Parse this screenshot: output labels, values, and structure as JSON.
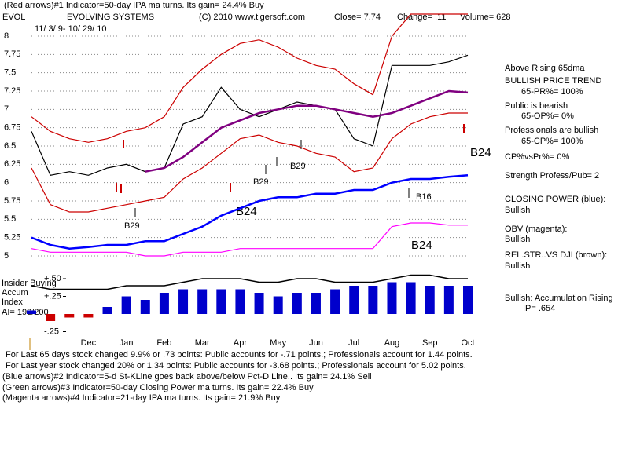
{
  "header": {
    "line1": "(Red arrows)#1 Indicator=50-day IPA ma turns. Its gain= 24.4% Buy",
    "symbol": "EVOL",
    "company": "EVOLVING SYSTEMS",
    "copyright": "(C) 2010 www.tigersoft.com",
    "close": "Close=  7.74",
    "change": "Change=  .11",
    "volume": "Volume= 628",
    "dates": "11/ 3/ 9- 10/ 29/ 10"
  },
  "chart_data": [
    {
      "type": "line",
      "categories": [
        null,
        null,
        null,
        "Dec",
        null,
        "Jan",
        null,
        "Feb",
        null,
        "Mar",
        null,
        "Apr",
        null,
        "May",
        null,
        "Jun",
        null,
        "Jul",
        null,
        "Aug",
        null,
        "Sep",
        null,
        "Oct"
      ],
      "ylim": [
        4.85,
        8.3
      ],
      "yticks": [
        5,
        5.25,
        5.5,
        5.75,
        6,
        6.25,
        6.5,
        6.75,
        7,
        7.25,
        7.5,
        7.75,
        8
      ],
      "grid": true,
      "series": [
        {
          "color": "#cc0000",
          "values": [
            6.9,
            6.7,
            6.6,
            6.55,
            6.6,
            6.7,
            6.75,
            6.9,
            7.3,
            7.55,
            7.75,
            7.9,
            7.95,
            7.85,
            7.7,
            7.6,
            7.55,
            7.35,
            7.2,
            8.0,
            8.3,
            8.3,
            8.3,
            8.3
          ]
        },
        {
          "color": "#cc0000",
          "values": [
            6.2,
            5.7,
            5.6,
            5.6,
            5.65,
            5.7,
            5.75,
            5.8,
            6.05,
            6.2,
            6.4,
            6.6,
            6.65,
            6.55,
            6.5,
            6.4,
            6.35,
            6.15,
            6.2,
            6.6,
            6.8,
            6.9,
            6.95,
            6.95
          ]
        },
        {
          "color": "#000000",
          "values": [
            6.7,
            6.1,
            6.15,
            6.1,
            6.2,
            6.25,
            6.15,
            6.2,
            6.8,
            6.9,
            7.3,
            7.0,
            6.9,
            7.0,
            7.1,
            7.05,
            7.0,
            6.6,
            6.5,
            7.6,
            7.6,
            7.6,
            7.65,
            7.74
          ]
        },
        {
          "color": "#800080",
          "values": [
            null,
            null,
            null,
            null,
            null,
            null,
            6.15,
            6.2,
            6.35,
            6.55,
            6.75,
            6.85,
            6.95,
            7.0,
            7.05,
            7.05,
            7.0,
            6.95,
            6.9,
            6.95,
            7.05,
            7.15,
            7.25,
            7.23
          ]
        },
        {
          "color": "#0000ff",
          "values": [
            5.25,
            5.15,
            5.1,
            5.12,
            5.15,
            5.15,
            5.2,
            5.2,
            5.3,
            5.4,
            5.55,
            5.65,
            5.75,
            5.8,
            5.8,
            5.85,
            5.85,
            5.9,
            5.9,
            6.0,
            6.05,
            6.05,
            6.08,
            6.1
          ]
        },
        {
          "color": "#ff00ff",
          "values": [
            5.1,
            5.05,
            5.05,
            5.05,
            5.05,
            5.05,
            5.0,
            5.0,
            5.05,
            5.05,
            5.05,
            5.1,
            5.1,
            5.1,
            5.1,
            5.1,
            5.1,
            5.1,
            5.1,
            5.4,
            5.45,
            5.45,
            5.42,
            5.42
          ]
        }
      ]
    },
    {
      "type": "bar",
      "ylim": [
        -0.3,
        0.6
      ],
      "yticks": [
        {
          "value": 0.5,
          "label": "+.50"
        },
        {
          "value": 0.25,
          "label": "+.25"
        },
        {
          "value": -0.25,
          "label": "-.25"
        }
      ],
      "color": "#0000cc",
      "negative_color": "#cc0000",
      "values": [
        0.05,
        -0.1,
        -0.05,
        -0.05,
        0.1,
        0.25,
        0.2,
        0.3,
        0.35,
        0.35,
        0.35,
        0.35,
        0.3,
        0.25,
        0.3,
        0.3,
        0.35,
        0.4,
        0.4,
        0.45,
        0.45,
        0.4,
        0.4,
        0.4
      ],
      "line": {
        "color": "#000000",
        "values": [
          0.4,
          0.35,
          0.35,
          0.35,
          0.35,
          0.4,
          0.4,
          0.4,
          0.45,
          0.5,
          0.5,
          0.5,
          0.45,
          0.45,
          0.5,
          0.5,
          0.45,
          0.45,
          0.45,
          0.5,
          0.55,
          0.55,
          0.5,
          0.5
        ]
      }
    }
  ],
  "annotations": [
    "B29",
    "B29",
    "B29",
    "B24",
    "B16",
    "B24",
    "B24"
  ],
  "accum_labels": [
    "Insider Buying",
    "Accum",
    "Index",
    "AI= 198/200"
  ],
  "side_panel": [
    "Above Rising 65dma",
    "BULLISH PRICE TREND",
    "65-PR%= 100%",
    "Public is bearish",
    "65-OP%= 0%",
    "Professionals are bullish",
    "65-CP%= 100%",
    "CP%vsPr%=  0%",
    "Strength Profess/Pub= 2",
    "CLOSING POWER (blue):",
    "Bullish",
    "OBV (magenta):",
    "Bullish",
    "REL.STR..VS DJI (brown):",
    "Bullish",
    "Bullish: Accumulation Rising",
    "IP=  .654"
  ],
  "footer": [
    "For Last 65 days stock changed  9.9% or  .73 points:  Public accounts for -.71 points.;  Professionals account for  1.44 points.",
    "For Last year stock changed  20% or  1.34 points:  Public accounts for -3.68 points.;  Professionals account for  5.02 points.",
    "(Blue arrows)#2 Indicator=5-d St-KLine goes back above/below Pct-D Line.. Its gain= 24.1% Sell",
    "(Green arrows)#3 Indicator=50-day Closing Power ma turns. Its gain= 22.4% Buy",
    "(Magenta arrows)#4 Indicator=21-day IPA ma turns. Its gain= 21.9% Buy"
  ]
}
